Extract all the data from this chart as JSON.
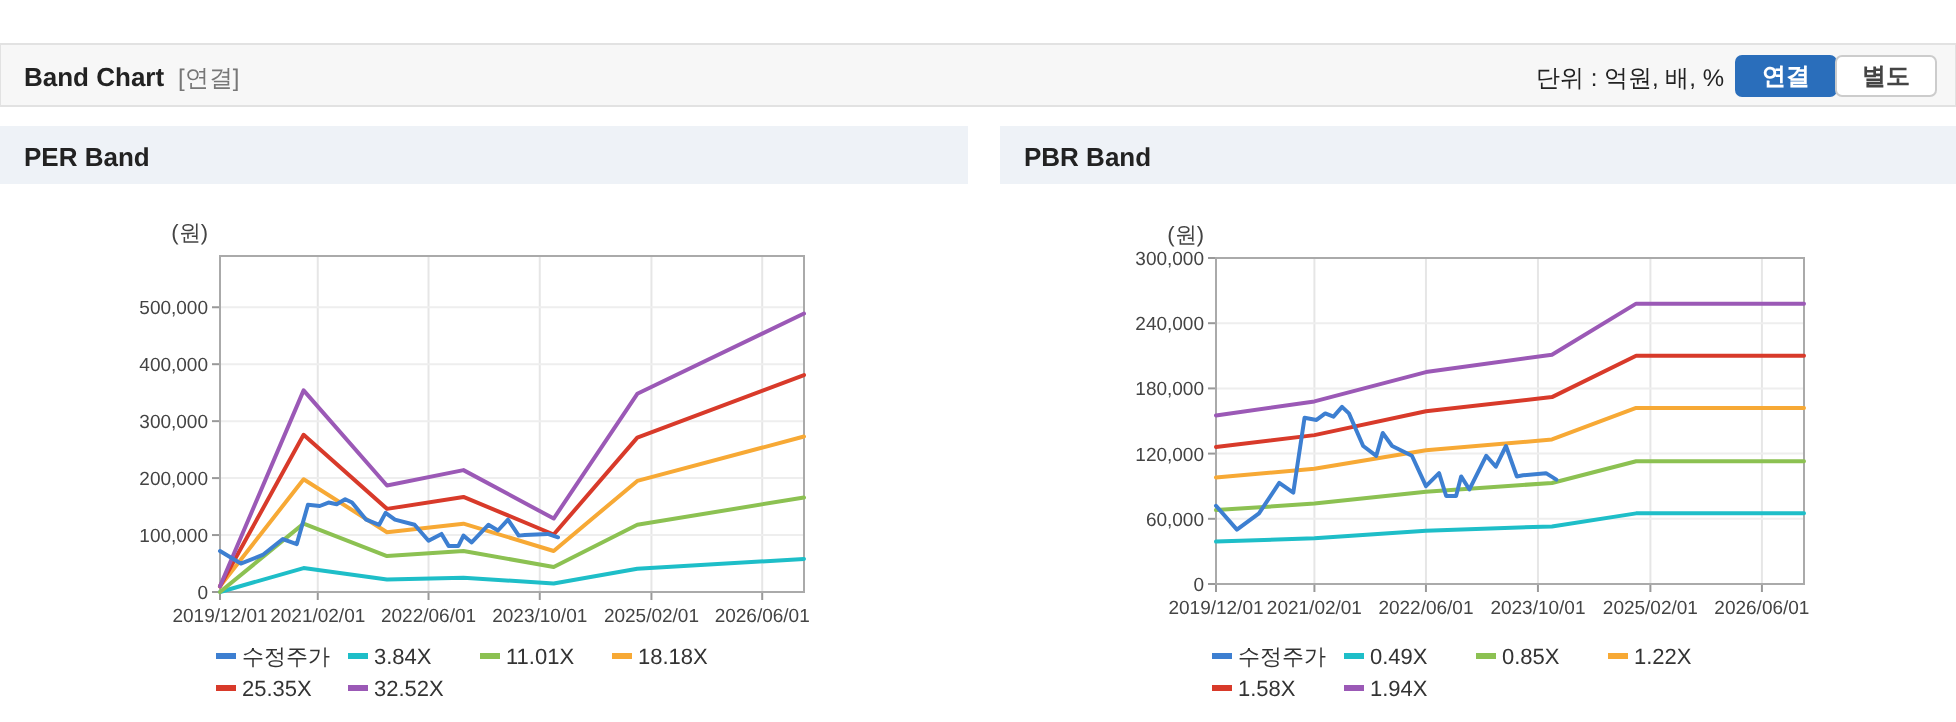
{
  "chart_data": [
    {
      "type": "other",
      "title": "Band Chart",
      "annotations": [
        "[연결]",
        "단위 : 억원, 배, %",
        "연결",
        "별도"
      ]
    },
    {
      "type": "line",
      "title": "PER Band",
      "ylabel": "(원)",
      "grid": true,
      "legend": "bottom",
      "marker": "none",
      "line_style": "solid",
      "xlim": [
        "2019-12-01",
        "2026-12-01"
      ],
      "xticks": [
        {
          "value": "2019-12-01",
          "label": "2019/12/01"
        },
        {
          "value": "2021-02-01",
          "label": "2021/02/01"
        },
        {
          "value": "2022-06-01",
          "label": "2022/06/01"
        },
        {
          "value": "2023-10-01",
          "label": "2023/10/01"
        },
        {
          "value": "2025-02-01",
          "label": "2025/02/01"
        },
        {
          "value": "2026-06-01",
          "label": "2026/06/01"
        }
      ],
      "ylim": [
        0,
        590000
      ],
      "yticks": [
        0,
        {
          "value": 100000,
          "label": "100,000"
        },
        {
          "value": 200000,
          "label": "200,000"
        },
        {
          "value": 300000,
          "label": "300,000"
        },
        {
          "value": 400000,
          "label": "400,000"
        },
        {
          "value": 500000,
          "label": "500,000"
        }
      ],
      "series": [
        {
          "name": "수정주가",
          "color": "#3d7fd1",
          "x": [
            "2019-12-01",
            "2020-03-01",
            "2020-06-05",
            "2020-09-01",
            "2020-11-01",
            "2020-12-20",
            "2021-02-10",
            "2021-03-20",
            "2021-04-25",
            "2021-06-01",
            "2021-07-01",
            "2021-09-01",
            "2021-10-28",
            "2021-11-25",
            "2022-01-05",
            "2022-04-01",
            "2022-06-01",
            "2022-07-28",
            "2022-08-28",
            "2022-10-10",
            "2022-11-01",
            "2022-12-07",
            "2023-02-18",
            "2023-04-01",
            "2023-05-15",
            "2023-07-01",
            "2023-07-28",
            "2023-11-05",
            "2023-12-20"
          ],
          "values": [
            72000,
            50000,
            65000,
            93000,
            84000,
            153000,
            151000,
            157000,
            154000,
            163000,
            157000,
            127000,
            118000,
            139000,
            127000,
            118000,
            90000,
            102000,
            81000,
            81000,
            99000,
            87000,
            118000,
            108000,
            127000,
            99000,
            100000,
            102000,
            96000
          ]
        },
        {
          "name": "3.84X",
          "color": "#1ebec8",
          "x": [
            "2019-12-01",
            "2020-12-01",
            "2021-12-01",
            "2022-11-01",
            "2023-12-01",
            "2024-12-01",
            "2026-12-01"
          ],
          "values": [
            0,
            42000,
            22000,
            25000,
            15000,
            41000,
            58000
          ]
        },
        {
          "name": "11.01X",
          "color": "#8cc152",
          "x": [
            "2019-12-01",
            "2020-12-01",
            "2021-12-01",
            "2022-11-01",
            "2023-12-01",
            "2024-12-01",
            "2026-12-01"
          ],
          "values": [
            0,
            120000,
            63000,
            72000,
            44000,
            118000,
            166000
          ]
        },
        {
          "name": "18.18X",
          "color": "#f7a935",
          "x": [
            "2019-12-01",
            "2020-12-01",
            "2021-12-01",
            "2022-11-01",
            "2023-12-01",
            "2024-12-01",
            "2026-12-01"
          ],
          "values": [
            10000,
            198000,
            105000,
            120000,
            72000,
            195000,
            273000
          ]
        },
        {
          "name": "25.35X",
          "color": "#d83a2a",
          "x": [
            "2019-12-01",
            "2020-12-01",
            "2021-12-01",
            "2022-11-01",
            "2023-12-01",
            "2024-12-01",
            "2026-12-01"
          ],
          "values": [
            10000,
            276000,
            146000,
            167000,
            101000,
            271000,
            381000
          ]
        },
        {
          "name": "32.52X",
          "color": "#9b59b6",
          "x": [
            "2019-12-01",
            "2020-12-01",
            "2021-12-01",
            "2022-11-01",
            "2023-12-01",
            "2024-12-01",
            "2026-12-01"
          ],
          "values": [
            10000,
            354000,
            187000,
            214000,
            129000,
            348000,
            489000
          ]
        }
      ]
    },
    {
      "type": "line",
      "title": "PBR Band",
      "ylabel": "(원)",
      "grid": true,
      "legend": "bottom",
      "marker": "none",
      "line_style": "solid",
      "xlim": [
        "2019-12-01",
        "2026-12-01"
      ],
      "xticks": [
        {
          "value": "2019-12-01",
          "label": "2019/12/01"
        },
        {
          "value": "2021-02-01",
          "label": "2021/02/01"
        },
        {
          "value": "2022-06-01",
          "label": "2022/06/01"
        },
        {
          "value": "2023-10-01",
          "label": "2023/10/01"
        },
        {
          "value": "2025-02-01",
          "label": "2025/02/01"
        },
        {
          "value": "2026-06-01",
          "label": "2026/06/01"
        }
      ],
      "ylim": [
        0,
        300000
      ],
      "yticks": [
        0,
        {
          "value": 60000,
          "label": "60,000"
        },
        {
          "value": 120000,
          "label": "120,000"
        },
        {
          "value": 180000,
          "label": "180,000"
        },
        {
          "value": 240000,
          "label": "240,000"
        },
        {
          "value": 300000,
          "label": "300,000"
        }
      ],
      "series": [
        {
          "name": "수정주가",
          "color": "#3d7fd1",
          "x": [
            "2019-12-01",
            "2020-03-01",
            "2020-06-05",
            "2020-09-01",
            "2020-11-01",
            "2020-12-20",
            "2021-02-10",
            "2021-03-20",
            "2021-04-25",
            "2021-06-01",
            "2021-07-01",
            "2021-09-01",
            "2021-10-28",
            "2021-11-25",
            "2022-01-05",
            "2022-04-01",
            "2022-06-01",
            "2022-07-28",
            "2022-08-28",
            "2022-10-10",
            "2022-11-01",
            "2022-12-07",
            "2023-02-18",
            "2023-04-01",
            "2023-05-15",
            "2023-07-01",
            "2023-07-28",
            "2023-11-05",
            "2023-12-20"
          ],
          "values": [
            72000,
            50000,
            65000,
            93000,
            84000,
            153000,
            151000,
            157000,
            154000,
            163000,
            157000,
            127000,
            118000,
            139000,
            127000,
            118000,
            90000,
            102000,
            81000,
            81000,
            99000,
            87000,
            118000,
            108000,
            127000,
            99000,
            100000,
            102000,
            96000
          ]
        },
        {
          "name": "0.49X",
          "color": "#1ebec8",
          "x": [
            "2019-12-01",
            "2021-02-01",
            "2022-06-01",
            "2023-12-01",
            "2024-12-01",
            "2026-12-01"
          ],
          "values": [
            39000,
            42000,
            49000,
            53000,
            65000,
            65000
          ]
        },
        {
          "name": "0.85X",
          "color": "#8cc152",
          "x": [
            "2019-12-01",
            "2021-02-01",
            "2022-06-01",
            "2023-12-01",
            "2024-12-01",
            "2026-12-01"
          ],
          "values": [
            68000,
            74000,
            85000,
            93000,
            113000,
            113000
          ]
        },
        {
          "name": "1.22X",
          "color": "#f7a935",
          "x": [
            "2019-12-01",
            "2021-02-01",
            "2022-06-01",
            "2023-12-01",
            "2024-12-01",
            "2026-12-01"
          ],
          "values": [
            98000,
            106000,
            123000,
            133000,
            162000,
            162000
          ]
        },
        {
          "name": "1.58X",
          "color": "#d83a2a",
          "x": [
            "2019-12-01",
            "2021-02-01",
            "2022-06-01",
            "2023-12-01",
            "2024-12-01",
            "2026-12-01"
          ],
          "values": [
            126000,
            137000,
            159000,
            172000,
            210000,
            210000
          ]
        },
        {
          "name": "1.94X",
          "color": "#9b59b6",
          "x": [
            "2019-12-01",
            "2021-02-01",
            "2022-06-01",
            "2023-12-01",
            "2024-12-01",
            "2026-12-01"
          ],
          "values": [
            155000,
            168000,
            195000,
            211000,
            258000,
            258000
          ]
        }
      ]
    }
  ]
}
